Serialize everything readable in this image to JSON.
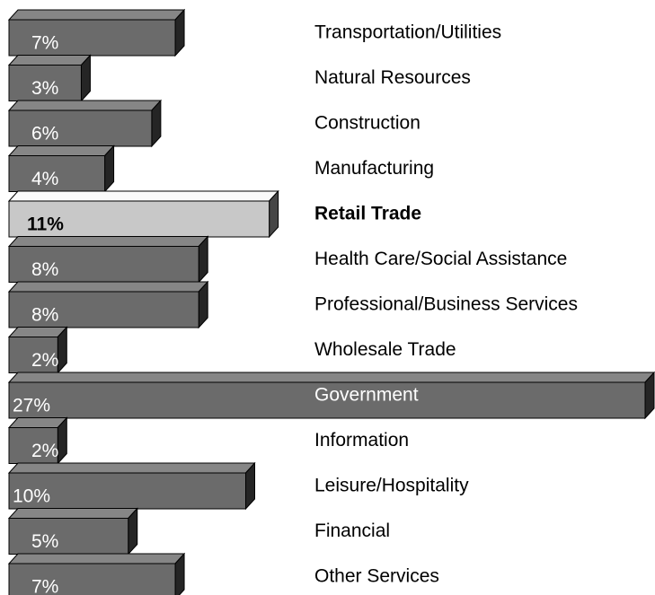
{
  "chart_data": {
    "type": "bar",
    "orientation": "horizontal",
    "categories": [
      "Transportation/Utilities",
      "Natural Resources",
      "Construction",
      "Manufacturing",
      "Retail  Trade",
      "Health Care/Social Assistance",
      "Professional/Business Services",
      "Wholesale Trade",
      "Government",
      "Information",
      "Leisure/Hospitality",
      "Financial",
      "Other Services"
    ],
    "values": [
      7,
      3,
      6,
      4,
      11,
      8,
      8,
      2,
      27,
      2,
      10,
      5,
      7
    ],
    "value_labels": [
      "7%",
      "3%",
      "6%",
      "4%",
      "11%",
      "8%",
      "8%",
      "2%",
      "27%",
      "2%",
      "10%",
      "5%",
      "7%"
    ],
    "color": "#6b6b6b",
    "highlight_color": "#c8c8c8",
    "highlight_index": 4
  }
}
